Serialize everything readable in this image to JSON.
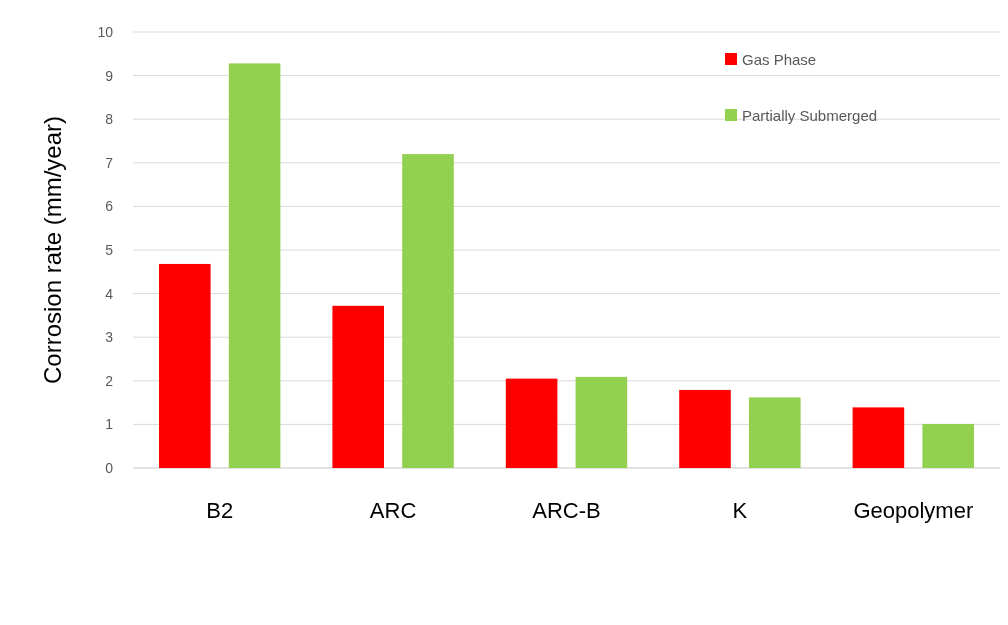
{
  "chart_data": {
    "type": "bar",
    "ylabel": "Corrosion rate (mm/year)",
    "categories": [
      "B2",
      "ARC",
      "ARC-B",
      "K",
      "Geopolymer"
    ],
    "series": [
      {
        "name": "Gas Phase",
        "color": "#ff0000",
        "values": [
          4.68,
          3.72,
          2.05,
          1.79,
          1.39
        ]
      },
      {
        "name": "Partially Submerged",
        "color": "#92d050",
        "values": [
          9.28,
          7.2,
          2.09,
          1.62,
          1.01
        ]
      }
    ],
    "ylim": [
      0,
      10
    ],
    "yticks": [
      0,
      1,
      2,
      3,
      4,
      5,
      6,
      7,
      8,
      9,
      10
    ],
    "grid": "y",
    "legend": "top right"
  }
}
